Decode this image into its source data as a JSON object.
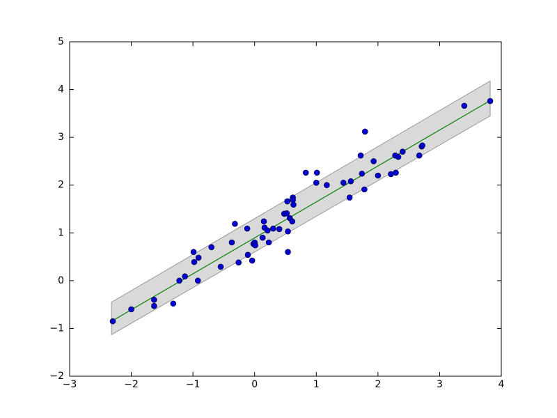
{
  "chart_data": {
    "type": "scatter",
    "xlim": [
      -3,
      4
    ],
    "ylim": [
      -2,
      5
    ],
    "xticks": [
      {
        "value": -3,
        "label": "−3"
      },
      {
        "value": -2,
        "label": "−2"
      },
      {
        "value": -1,
        "label": "−1"
      },
      0,
      1,
      2,
      3,
      4
    ],
    "yticks": [
      {
        "value": -2,
        "label": "−2"
      },
      {
        "value": -1,
        "label": "−1"
      },
      0,
      1,
      2,
      3,
      4,
      5
    ],
    "points": {
      "color": "#0000cc",
      "x": [
        -2.3,
        -2.0,
        -1.63,
        -1.63,
        -1.32,
        -1.22,
        -1.13,
        -0.99,
        -0.98,
        -0.91,
        -0.92,
        -0.7,
        -0.55,
        -0.37,
        -0.32,
        -0.26,
        -0.12,
        -0.11,
        -0.04,
        -0.02,
        0.0,
        0.01,
        0.13,
        0.15,
        0.16,
        0.23,
        0.21,
        0.3,
        0.4,
        0.48,
        0.52,
        0.53,
        0.54,
        0.54,
        0.57,
        0.61,
        0.62,
        0.62,
        0.63,
        0.83,
        1.01,
        1.0,
        1.17,
        1.44,
        1.54,
        1.56,
        1.72,
        1.74,
        1.79,
        1.78,
        1.93,
        2.0,
        2.21,
        2.29,
        2.28,
        2.33,
        2.4,
        2.67,
        2.71,
        2.72,
        3.4,
        3.82
      ],
      "y": [
        -0.85,
        -0.6,
        -0.4,
        -0.53,
        -0.48,
        0.0,
        0.09,
        0.6,
        0.39,
        0.48,
        0.0,
        0.7,
        0.29,
        0.8,
        1.19,
        0.38,
        1.09,
        0.54,
        0.42,
        0.77,
        0.8,
        0.74,
        0.9,
        1.24,
        1.11,
        0.8,
        1.05,
        1.09,
        1.08,
        1.4,
        1.41,
        1.66,
        1.03,
        0.6,
        1.31,
        1.24,
        1.74,
        1.69,
        1.59,
        2.26,
        2.26,
        2.05,
        2.0,
        2.05,
        1.74,
        2.08,
        2.62,
        2.24,
        3.12,
        1.91,
        2.5,
        2.2,
        2.23,
        2.26,
        2.62,
        2.59,
        2.7,
        2.62,
        2.81,
        2.83,
        3.66,
        3.76
      ]
    },
    "fit": {
      "color": "#008000",
      "x": [
        -2.32,
        3.82
      ],
      "y": [
        -0.85,
        3.77
      ]
    },
    "band": {
      "color": "#d9d9d9",
      "x": [
        -2.32,
        3.82
      ],
      "lower": [
        -1.13,
        3.45
      ],
      "upper": [
        -0.45,
        4.18
      ]
    }
  }
}
